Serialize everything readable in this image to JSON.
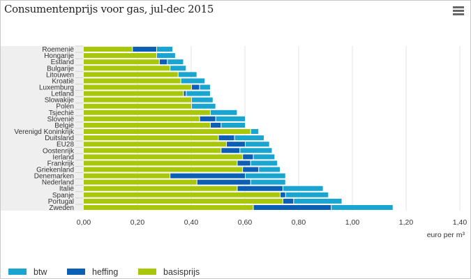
{
  "title": "Consumentenprijs voor gas, jul-dec 2015",
  "menu_icon": "hamburger-menu-icon",
  "chart_data": {
    "type": "bar",
    "orientation": "horizontal",
    "stacked": true,
    "title": "Consumentenprijs voor gas, jul-dec 2015",
    "xlabel": "euro per m³",
    "xlim": [
      0,
      1.4
    ],
    "xticks": [
      "0,00",
      "0,20",
      "0,40",
      "0,60",
      "0,80",
      "1,00",
      "1,20",
      "1,40"
    ],
    "grid": true,
    "legend": "bottom-left",
    "categories": [
      "Roemenië",
      "Hongarije",
      "Estland",
      "Bulgarije",
      "Litouwen",
      "Kroatië",
      "Luxemburg",
      "Letland",
      "Slowakije",
      "Polen",
      "Tsjechië",
      "Slovenië",
      "België",
      "Verenigd Koninkrijk",
      "Duitsland",
      "EU28",
      "Oostenrijk",
      "Ierland",
      "Frankrijk",
      "Griekenland",
      "Denemarken",
      "Nederland",
      "Italië",
      "Spanje",
      "Portugal",
      "Zweden"
    ],
    "series": [
      {
        "name": "basisprijs",
        "color": "#a8c70a",
        "values": [
          0.18,
          0.27,
          0.28,
          0.32,
          0.35,
          0.36,
          0.4,
          0.37,
          0.4,
          0.4,
          0.47,
          0.43,
          0.47,
          0.62,
          0.5,
          0.53,
          0.51,
          0.59,
          0.57,
          0.59,
          0.32,
          0.42,
          0.57,
          0.73,
          0.74,
          0.63
        ]
      },
      {
        "name": "heffing",
        "color": "#0b5fb5",
        "values": [
          0.09,
          0,
          0.03,
          0,
          0,
          0,
          0.03,
          0.01,
          0,
          0,
          0,
          0.06,
          0.04,
          0,
          0.06,
          0.07,
          0.07,
          0.04,
          0.05,
          0.06,
          0.28,
          0.2,
          0.17,
          0.02,
          0.04,
          0.29
        ]
      },
      {
        "name": "btw",
        "color": "#1aa5d0",
        "values": [
          0.06,
          0.07,
          0.06,
          0.06,
          0.07,
          0.09,
          0.04,
          0.09,
          0.08,
          0.09,
          0.1,
          0.11,
          0.09,
          0.03,
          0.11,
          0.09,
          0.12,
          0.08,
          0.1,
          0.08,
          0.15,
          0.13,
          0.15,
          0.16,
          0.18,
          0.23
        ]
      }
    ],
    "legend_order": [
      "btw",
      "heffing",
      "basisprijs"
    ]
  }
}
